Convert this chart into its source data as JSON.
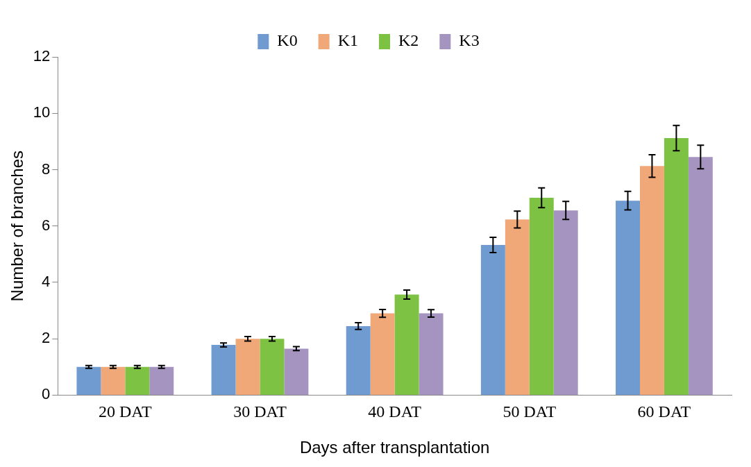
{
  "chart_data": {
    "type": "bar",
    "xlabel": "Days after transplantation",
    "ylabel": "Number of branches",
    "categories": [
      "20 DAT",
      "30 DAT",
      "40 DAT",
      "50 DAT",
      "60 DAT"
    ],
    "series": [
      {
        "name": "K0",
        "color": "#6f9bd1",
        "values": [
          1.0,
          1.78,
          2.45,
          5.33,
          6.9
        ],
        "errors": [
          0.05,
          0.07,
          0.12,
          0.27,
          0.33
        ]
      },
      {
        "name": "K1",
        "color": "#f0a878",
        "values": [
          1.0,
          2.0,
          2.9,
          6.23,
          8.13
        ],
        "errors": [
          0.05,
          0.08,
          0.14,
          0.3,
          0.4
        ]
      },
      {
        "name": "K2",
        "color": "#7dc242",
        "values": [
          1.0,
          2.0,
          3.57,
          7.0,
          9.12
        ],
        "errors": [
          0.05,
          0.08,
          0.16,
          0.35,
          0.45
        ]
      },
      {
        "name": "K3",
        "color": "#a694c0",
        "values": [
          1.0,
          1.65,
          2.9,
          6.55,
          8.45
        ],
        "errors": [
          0.05,
          0.07,
          0.13,
          0.32,
          0.42
        ]
      }
    ],
    "ylim": [
      0,
      12
    ],
    "yticks": [
      0,
      2,
      4,
      6,
      8,
      10,
      12
    ],
    "grid": false,
    "legend": "top"
  }
}
